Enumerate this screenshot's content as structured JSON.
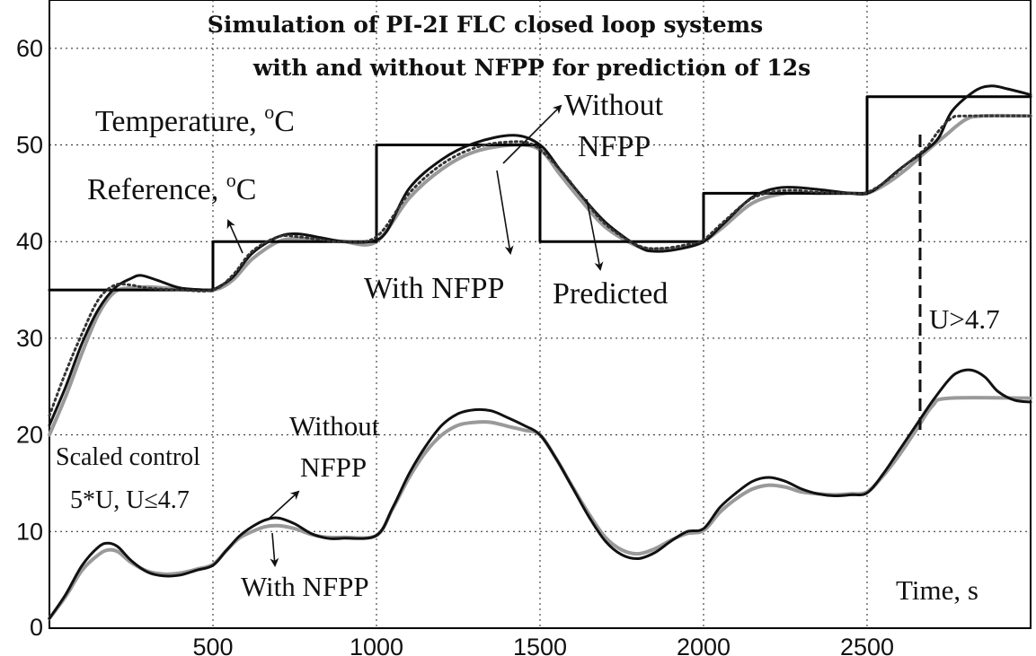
{
  "chart_data": {
    "type": "line",
    "title_line1": "Simulation of PI-2I FLC closed loop systems",
    "title_line2": "with and without NFPP for prediction of 12s",
    "xlabel": "Time, s",
    "xlim": [
      0,
      3000
    ],
    "ylim": [
      0,
      65
    ],
    "xticks": [
      500,
      1000,
      1500,
      2000,
      2500
    ],
    "yticks": [
      0,
      10,
      20,
      30,
      40,
      50,
      60
    ],
    "grid": true,
    "series": [
      {
        "color": "#000000",
        "style": "solid",
        "x": [
          0,
          500,
          500,
          1000,
          1000,
          1500,
          1500,
          2000,
          2000,
          2500,
          2500,
          3000
        ],
        "y": [
          35,
          35,
          40,
          40,
          50,
          50,
          40,
          40,
          45,
          45,
          55,
          55
        ]
      },
      {
        "color": "#111111",
        "style": "solid",
        "x": [
          0,
          50,
          100,
          150,
          200,
          250,
          280,
          330,
          400,
          480,
          500,
          560,
          620,
          700,
          760,
          830,
          900,
          980,
          1030,
          1100,
          1200,
          1300,
          1420,
          1500,
          1560,
          1620,
          1700,
          1800,
          1850,
          1920,
          2000,
          2060,
          2150,
          2240,
          2350,
          2450,
          2500,
          2540,
          2600,
          2680,
          2720,
          2760,
          2830,
          2880,
          2930,
          3000
        ],
        "y": [
          21,
          25,
          29.5,
          33,
          35.2,
          36.2,
          36.5,
          36,
          35.2,
          35,
          35,
          36.3,
          38.8,
          40.5,
          40.8,
          40.4,
          40,
          40,
          41,
          45.5,
          48.5,
          50.2,
          51,
          50,
          47.5,
          45,
          42,
          39.5,
          39,
          39.2,
          40,
          41.8,
          44.6,
          45.6,
          45.4,
          45,
          45,
          45.8,
          47.5,
          49.5,
          50.8,
          53.5,
          55.6,
          56.1,
          55.8,
          55.2
        ]
      },
      {
        "color": "#9a9a9a",
        "style": "solid",
        "x": [
          0,
          50,
          100,
          150,
          200,
          250,
          300,
          400,
          500,
          560,
          620,
          700,
          760,
          830,
          900,
          1000,
          1100,
          1200,
          1300,
          1420,
          1500,
          1560,
          1620,
          1700,
          1800,
          1870,
          1950,
          2000,
          2060,
          2150,
          2250,
          2350,
          2450,
          2500,
          2560,
          2620,
          2680,
          2740,
          2800,
          2850,
          3000
        ],
        "y": [
          20,
          24,
          28.5,
          32.5,
          34.8,
          35.2,
          35.3,
          35.1,
          35,
          36,
          38.2,
          40,
          40.3,
          40.2,
          40,
          40,
          44.5,
          47.5,
          49.3,
          50,
          49.5,
          47,
          44.5,
          41.5,
          39.5,
          39.2,
          39.5,
          40,
          41.5,
          44,
          45,
          45,
          45,
          45,
          46,
          47.5,
          49.3,
          51,
          52.6,
          53,
          53
        ]
      },
      {
        "color": "#333333",
        "style": "dotted",
        "x": [
          0,
          50,
          100,
          150,
          200,
          250,
          300,
          400,
          500,
          560,
          620,
          700,
          760,
          830,
          900,
          1000,
          1100,
          1200,
          1300,
          1400,
          1480,
          1560,
          1620,
          1700,
          1800,
          1870,
          1950,
          2000,
          2060,
          2150,
          2250,
          2350,
          2450,
          2500,
          2560,
          2620,
          2680,
          2720,
          2760,
          2800,
          3000
        ],
        "y": [
          22,
          26.5,
          30.5,
          34,
          35.5,
          35.5,
          35.2,
          35,
          35,
          36.5,
          39,
          40.5,
          40.5,
          40.2,
          40,
          40.5,
          45,
          48,
          49.7,
          50.3,
          50,
          47.5,
          45,
          41.8,
          39.6,
          39.3,
          39.7,
          40.2,
          42,
          44.5,
          45.3,
          45.1,
          45,
          45.1,
          46.3,
          48,
          49.7,
          51.5,
          52.8,
          53,
          53
        ]
      },
      {
        "color": "#111111",
        "style": "solid",
        "x": [
          0,
          50,
          100,
          150,
          180,
          210,
          250,
          300,
          350,
          400,
          450,
          500,
          540,
          580,
          620,
          660,
          700,
          750,
          800,
          850,
          900,
          1000,
          1050,
          1100,
          1150,
          1200,
          1250,
          1300,
          1350,
          1400,
          1450,
          1500,
          1550,
          1600,
          1650,
          1700,
          1750,
          1800,
          1850,
          1900,
          1950,
          2000,
          2050,
          2100,
          2150,
          2200,
          2250,
          2300,
          2350,
          2400,
          2450,
          2500,
          2550,
          2600,
          2650,
          2700,
          2750,
          2780,
          2820,
          2860,
          2900,
          2950,
          3000
        ],
        "y": [
          1,
          3.5,
          6.5,
          8.4,
          8.8,
          8.4,
          7,
          5.8,
          5.4,
          5.5,
          6,
          6.5,
          8,
          9.5,
          10.5,
          11.2,
          11.4,
          10.8,
          9.8,
          9.3,
          9.3,
          9.6,
          12.5,
          16,
          18.8,
          21,
          22.2,
          22.6,
          22.5,
          21.8,
          21,
          20,
          17.5,
          14.5,
          11.5,
          9,
          7.6,
          7.2,
          7.8,
          9,
          10,
          10.3,
          12.5,
          14,
          15.2,
          15.6,
          15.2,
          14.4,
          13.9,
          13.7,
          13.8,
          14,
          16,
          18.5,
          21,
          23.5,
          25.7,
          26.5,
          26.7,
          26,
          24.5,
          23.6,
          23.4
        ]
      },
      {
        "color": "#9a9a9a",
        "style": "solid",
        "x": [
          0,
          50,
          100,
          150,
          180,
          210,
          250,
          300,
          350,
          400,
          450,
          500,
          540,
          580,
          620,
          660,
          700,
          750,
          800,
          850,
          900,
          1000,
          1050,
          1100,
          1150,
          1200,
          1250,
          1300,
          1350,
          1400,
          1450,
          1500,
          1550,
          1600,
          1650,
          1700,
          1750,
          1800,
          1850,
          1900,
          1950,
          2000,
          2050,
          2100,
          2150,
          2200,
          2250,
          2300,
          2350,
          2400,
          2450,
          2500,
          2550,
          2600,
          2650,
          2700,
          2750,
          3000
        ],
        "y": [
          1,
          3.3,
          6,
          7.6,
          8.1,
          7.9,
          6.8,
          5.9,
          5.6,
          5.7,
          6.1,
          6.6,
          8,
          9.3,
          10,
          10.5,
          10.6,
          10.3,
          9.7,
          9.4,
          9.4,
          9.6,
          12.4,
          15.6,
          18.2,
          20,
          21,
          21.3,
          21.3,
          20.9,
          20.5,
          20,
          17.5,
          14.6,
          11.8,
          9.4,
          8.1,
          7.7,
          8.2,
          9.1,
          9.8,
          10.1,
          12,
          13.4,
          14.4,
          14.8,
          14.6,
          14.1,
          13.9,
          13.8,
          13.9,
          14.1,
          15.8,
          18,
          20.5,
          23,
          23.8,
          23.8
        ]
      }
    ],
    "annotations": {
      "temperature": "Temperature, ",
      "temperature_unit": "C",
      "reference": "Reference, ",
      "reference_unit": "C",
      "degree": "o",
      "without_nfpp_top_1": "Without",
      "without_nfpp_top_2": "NFPP",
      "with_nfpp_top": "With NFPP",
      "predicted": "Predicted",
      "u_limit": "U>4.7",
      "scaled_control_1": "Scaled control",
      "scaled_control_2": "5*U, U≤4.7",
      "without_nfpp_bottom_1": "Without",
      "without_nfpp_bottom_2": "NFPP",
      "with_nfpp_bottom": "With NFPP"
    }
  }
}
